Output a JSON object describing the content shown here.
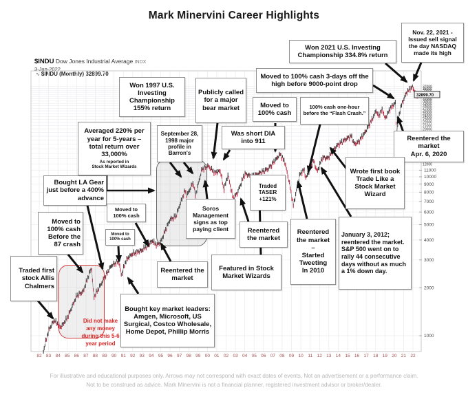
{
  "title": "Mark Minervini Career Highlights",
  "chart_header": {
    "symbol": "$INDU",
    "name": "Dow Jones Industrial Average",
    "exchange": "INDX",
    "date": "3-Jun-2022",
    "series_label": "$INDU (Monthly) 32899.70",
    "last_price": "32899.70"
  },
  "footer": {
    "line1": "For illustrative and educational purposes only. Arrows may not correspond with exact dates of events. Not an advertisement or a performance claim.",
    "line2": "Not to be construed as advice. Mark Minervini is not a financial planner, registered investment advisor or broker/dealer."
  },
  "colors": {
    "up_candle": "#3d3d3d",
    "down_candle": "#c13048",
    "arrow": "#111111",
    "red_note": "#e02424",
    "grid": "#ededf1",
    "x_label": "#a34b4b",
    "box_border": "#8f8f8f"
  },
  "chart_data": {
    "type": "line",
    "title": "$INDU Dow Jones Industrial Average (Monthly, semi-log)",
    "log_scale": true,
    "legend_position": "none",
    "grid": true,
    "x_labels": [
      "82",
      "83",
      "84",
      "85",
      "86",
      "87",
      "88",
      "89",
      "90",
      "91",
      "92",
      "93",
      "94",
      "95",
      "96",
      "97",
      "98",
      "99",
      "00",
      "01",
      "02",
      "03",
      "04",
      "05",
      "06",
      "07",
      "08",
      "09",
      "10",
      "11",
      "12",
      "13",
      "14",
      "15",
      "16",
      "17",
      "18",
      "19",
      "20",
      "21",
      "22"
    ],
    "y_ticks_major": [
      11000,
      10000,
      9000,
      8000,
      7000,
      6000,
      5000,
      4000,
      3000,
      2000,
      1000
    ],
    "y_ticks_minor_top": {
      "start": 12000,
      "end": 37000,
      "step": 1000
    },
    "xlim": [
      1982,
      2022.6
    ],
    "ylim": [
      800,
      38000
    ],
    "last_price": 32899.7,
    "anchors": [
      [
        1982.45,
        800
      ],
      [
        1983.0,
        1080
      ],
      [
        1983.6,
        1250
      ],
      [
        1984.3,
        1130
      ],
      [
        1985.0,
        1290
      ],
      [
        1986.0,
        1780
      ],
      [
        1986.7,
        1900
      ],
      [
        1987.6,
        2700
      ],
      [
        1987.83,
        1740
      ],
      [
        1988.5,
        2050
      ],
      [
        1989.7,
        2750
      ],
      [
        1990.5,
        2950
      ],
      [
        1990.8,
        2400
      ],
      [
        1991.3,
        3000
      ],
      [
        1992.0,
        3280
      ],
      [
        1993.0,
        3450
      ],
      [
        1994.1,
        3950
      ],
      [
        1994.6,
        3700
      ],
      [
        1995.0,
        3900
      ],
      [
        1996.0,
        5400
      ],
      [
        1996.6,
        5600
      ],
      [
        1997.6,
        8200
      ],
      [
        1997.8,
        7600
      ],
      [
        1998.5,
        9300
      ],
      [
        1998.7,
        7550
      ],
      [
        1999.4,
        11100
      ],
      [
        2000.05,
        11700
      ],
      [
        2000.8,
        10600
      ],
      [
        2001.4,
        10900
      ],
      [
        2001.75,
        8250
      ],
      [
        2002.2,
        10300
      ],
      [
        2002.75,
        7300
      ],
      [
        2003.2,
        7900
      ],
      [
        2004.0,
        10450
      ],
      [
        2004.8,
        10050
      ],
      [
        2005.5,
        10500
      ],
      [
        2006.5,
        11200
      ],
      [
        2007.8,
        13900
      ],
      [
        2008.3,
        12300
      ],
      [
        2008.75,
        9300
      ],
      [
        2009.2,
        6600
      ],
      [
        2009.9,
        10400
      ],
      [
        2010.35,
        11100
      ],
      [
        2010.55,
        9750
      ],
      [
        2011.35,
        12700
      ],
      [
        2011.75,
        10750
      ],
      [
        2012.3,
        13200
      ],
      [
        2012.9,
        13100
      ],
      [
        2013.8,
        15600
      ],
      [
        2014.8,
        17200
      ],
      [
        2015.4,
        18100
      ],
      [
        2015.7,
        16100
      ],
      [
        2016.1,
        16400
      ],
      [
        2016.9,
        19100
      ],
      [
        2017.9,
        24700
      ],
      [
        2018.07,
        26500
      ],
      [
        2018.25,
        23900
      ],
      [
        2018.75,
        26700
      ],
      [
        2019.0,
        23100
      ],
      [
        2019.6,
        27100
      ],
      [
        2020.12,
        29300
      ],
      [
        2020.24,
        18600
      ],
      [
        2020.65,
        27000
      ],
      [
        2021.0,
        30600
      ],
      [
        2021.35,
        34200
      ],
      [
        2021.85,
        36300
      ],
      [
        2022.0,
        36700
      ],
      [
        2022.2,
        34000
      ],
      [
        2022.45,
        32899
      ]
    ]
  },
  "annotations": [
    {
      "id": "allis",
      "text": "Traded first stock Allis Chalmers"
    },
    {
      "id": "moved87",
      "text": "Moved to 100% cash Before the 87 crash"
    },
    {
      "id": "lagear",
      "text": "Bought LA Gear just before a 400% advance"
    },
    {
      "id": "averaged",
      "text": "Averaged 220% per year for 5-years – total return over 33,000%",
      "sub": "As reported in\nStock Market Wizards"
    },
    {
      "id": "moved90",
      "text": "Moved to\n100% cash"
    },
    {
      "id": "tiny94",
      "text": "Moved to\n100% cash"
    },
    {
      "id": "won1997",
      "text": "Won 1997 U.S. Investing Championship 155% return"
    },
    {
      "id": "sep1998",
      "text": "September 28, 1998 major profile in Barron's"
    },
    {
      "id": "publicly",
      "text": "Publicly called for a major bear market"
    },
    {
      "id": "dia",
      "text": "Was short DIA into 911"
    },
    {
      "id": "soros",
      "text": "Soros Management signs as top paying client"
    },
    {
      "id": "reentered94",
      "text": "Reentered the market"
    },
    {
      "id": "keyleaders",
      "text": "Bought key market leaders: Amgen, Microsoft, US Surgical, Costco Wholesale, Home Depot, Phillip Morris"
    },
    {
      "id": "rednote",
      "text": "Did not make any money during this 5-6 year period"
    },
    {
      "id": "reentered03",
      "text": "Reentered the market"
    },
    {
      "id": "featured",
      "text": "Featured in Stock Market Wizards"
    },
    {
      "id": "taser",
      "text": "Traded\nTASER\n+121%"
    },
    {
      "id": "moved08",
      "text": "Moved to 100% cash"
    },
    {
      "id": "flash",
      "text": "100% cash one-hour before the “Flash Crash.”"
    },
    {
      "id": "moved3days",
      "text": "Moved to 100% cash 3-days off the high before 9000-point drop"
    },
    {
      "id": "won2021",
      "text": "Won 2021 U.S. Investing Championship 334.8% return"
    },
    {
      "id": "nov2021",
      "text": "Nov. 22, 2021 - Issued sell signal the day NASDAQ made its high"
    },
    {
      "id": "apr2020",
      "text": "Reentered the market\nApr. 6, 2020"
    },
    {
      "id": "tweeting",
      "text": "Reentered the market\n–\nStarted Tweeting\nIn 2010"
    },
    {
      "id": "jan2012",
      "text": "January 3, 2012; reentered the market. S&P 500 went on to rally 44 consecutive days without as much a 1% down day."
    },
    {
      "id": "book",
      "text": "Wrote first book Trade Like a Stock Market Wizard"
    }
  ]
}
